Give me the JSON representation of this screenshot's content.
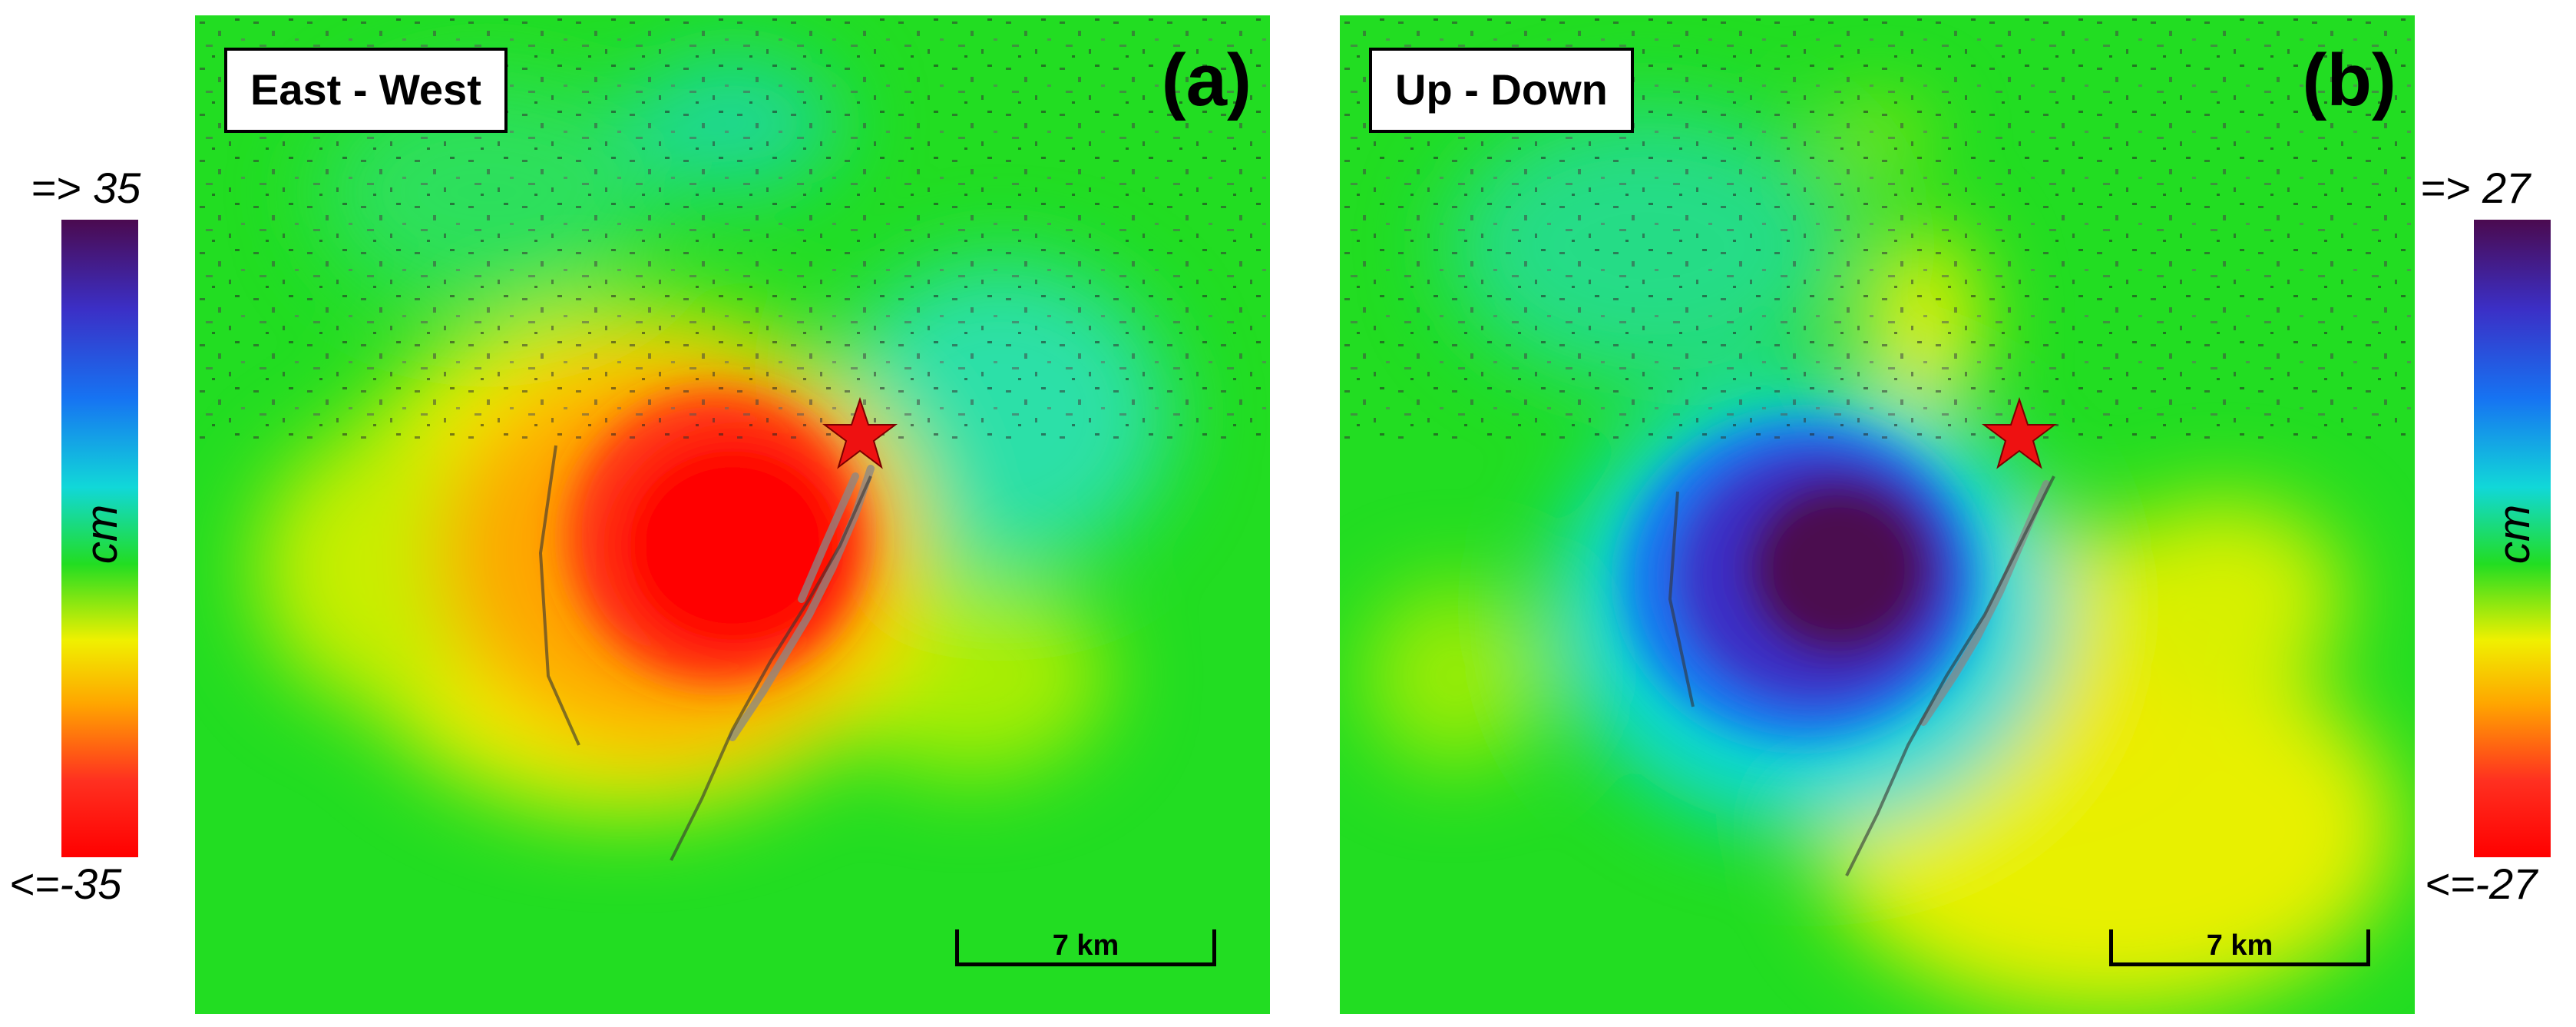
{
  "panels": [
    {
      "title": "East - West",
      "letter": "(a)",
      "scalebar_label": "7 km",
      "legend_max": "=> 35",
      "legend_min": "<=-35",
      "legend_unit": "cm"
    },
    {
      "title": "Up - Down",
      "letter": "(b)",
      "scalebar_label": "7 km",
      "legend_max": "=> 27",
      "legend_min": "<=-27",
      "legend_unit": "cm"
    }
  ],
  "colors": {
    "background_field": "#22dd22",
    "epicenter_star": "#ee1111",
    "colormap": [
      "#4b0a4f",
      "#3b2fc6",
      "#1673f2",
      "#11d8d8",
      "#22dd22",
      "#f0f000",
      "#ffa500",
      "#ff3020",
      "#ff0000"
    ]
  },
  "icons": {
    "epicenter": "red-star-icon"
  }
}
